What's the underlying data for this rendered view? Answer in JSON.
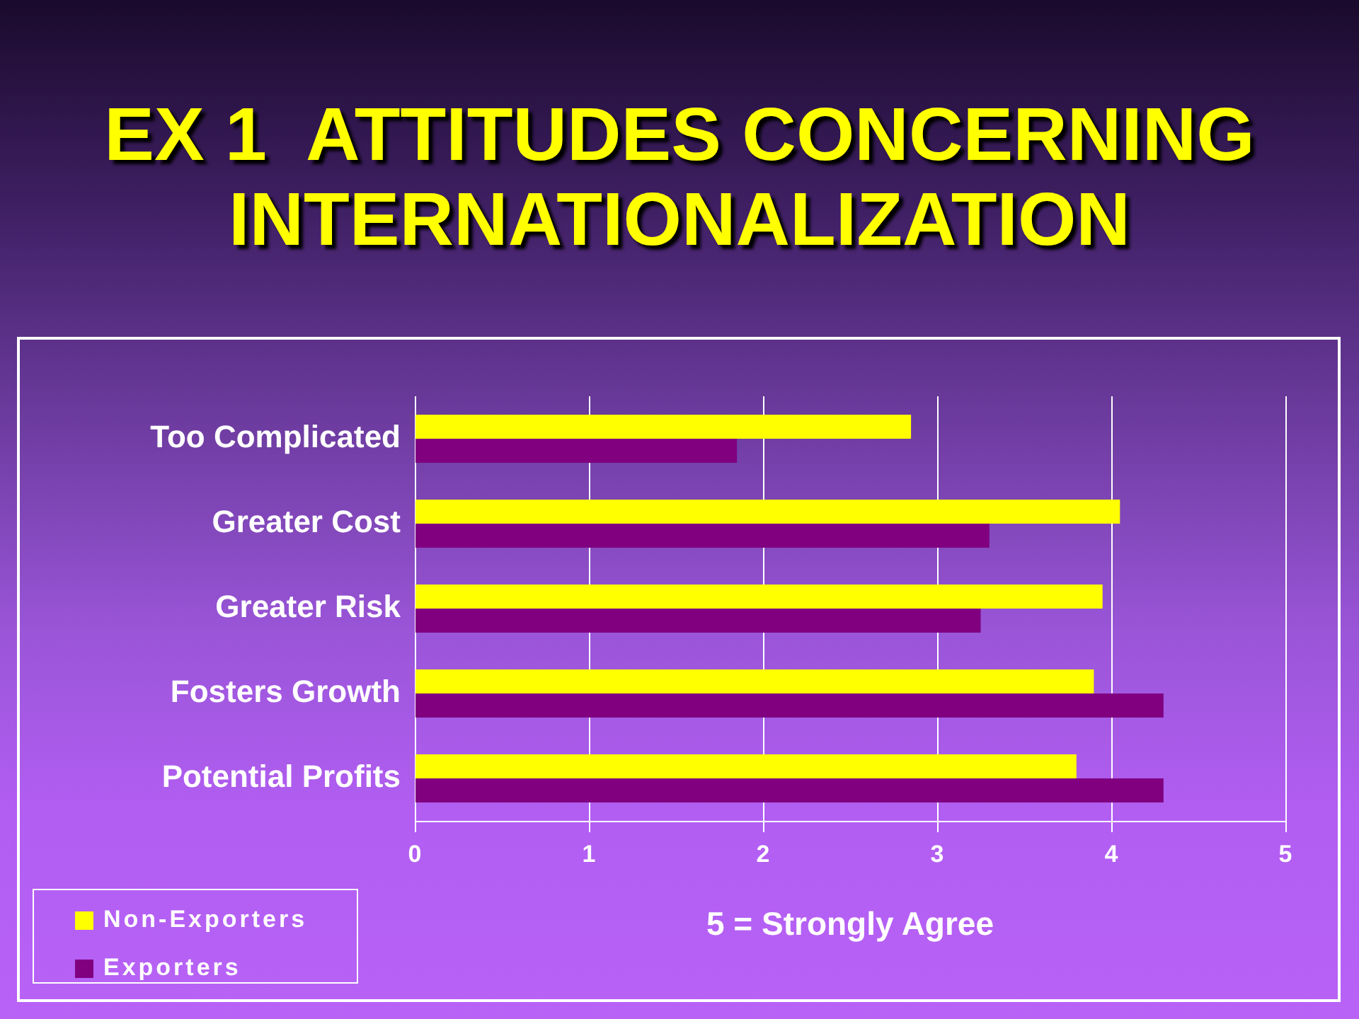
{
  "chart_data": {
    "type": "bar",
    "orientation": "horizontal",
    "title": "EX 1  ATTITUDES CONCERNING INTERNATIONALIZATION",
    "xlabel": "5 = Strongly Agree",
    "categories": [
      "Too Complicated",
      "Greater Cost",
      "Greater Risk",
      "Fosters Growth",
      "Potential Profits"
    ],
    "series": [
      {
        "name": "Non-Exporters",
        "color": "#ffff00",
        "values": [
          2.85,
          4.05,
          3.95,
          3.9,
          3.8
        ]
      },
      {
        "name": "Exporters",
        "color": "#800080",
        "values": [
          1.85,
          3.3,
          3.25,
          4.3,
          4.3
        ]
      }
    ],
    "xlim": [
      0,
      5
    ],
    "xticks": [
      0,
      1,
      2,
      3,
      4,
      5
    ],
    "grid": "x",
    "legend": "bottom left"
  }
}
